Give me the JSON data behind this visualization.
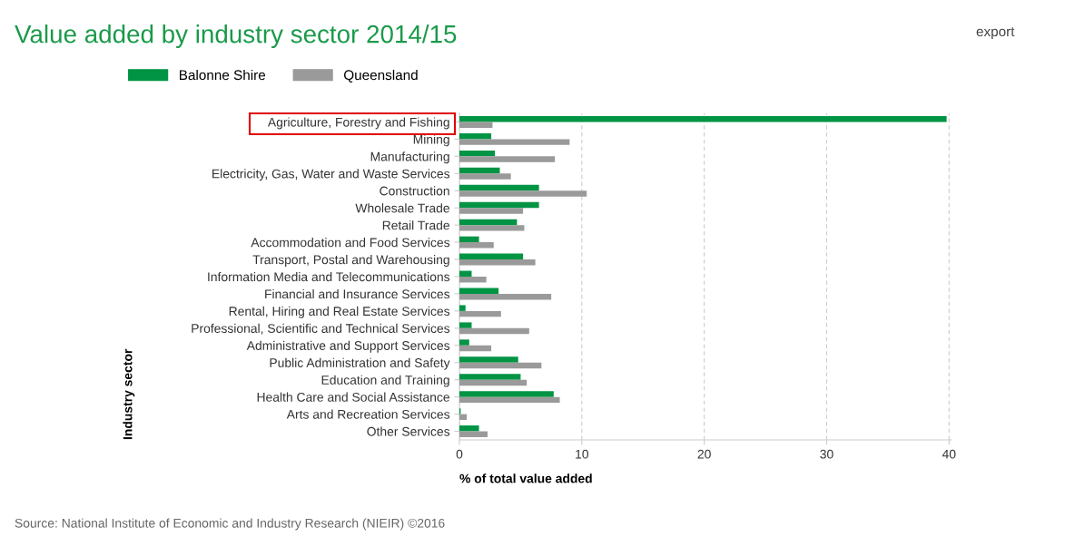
{
  "chart_data": {
    "type": "bar",
    "orientation": "horizontal",
    "title": "Value added by industry sector 2014/15",
    "xlabel": "% of total value added",
    "ylabel": "Industry sector",
    "categories": [
      "Agriculture, Forestry and Fishing",
      "Mining",
      "Manufacturing",
      "Electricity, Gas, Water and Waste Services",
      "Construction",
      "Wholesale Trade",
      "Retail Trade",
      "Accommodation and Food Services",
      "Transport, Postal and Warehousing",
      "Information Media and Telecommunications",
      "Financial and Insurance Services",
      "Rental, Hiring and Real Estate Services",
      "Professional, Scientific and Technical Services",
      "Administrative and Support Services",
      "Public Administration and Safety",
      "Education and Training",
      "Health Care and Social Assistance",
      "Arts and Recreation Services",
      "Other Services"
    ],
    "series": [
      {
        "name": "Balonne Shire",
        "color": "#009444",
        "values": [
          39.8,
          2.6,
          2.9,
          3.3,
          6.5,
          6.5,
          4.7,
          1.6,
          5.2,
          1.0,
          3.2,
          0.5,
          1.0,
          0.8,
          4.8,
          5.0,
          7.7,
          0.1,
          1.6
        ]
      },
      {
        "name": "Queensland",
        "color": "#9a9a9a",
        "values": [
          2.7,
          9.0,
          7.8,
          4.2,
          10.4,
          5.2,
          5.3,
          2.8,
          6.2,
          2.2,
          7.5,
          3.4,
          5.7,
          2.6,
          6.7,
          5.5,
          8.2,
          0.6,
          2.3
        ]
      }
    ],
    "xlim": [
      0,
      40.2
    ],
    "xticks": [
      0,
      10,
      20,
      30,
      40
    ],
    "grid": "x",
    "legend": "top left",
    "annotations": [
      "export",
      "Source: National Institute of Economic and Industry Research (NIEIR) ©2016"
    ]
  }
}
